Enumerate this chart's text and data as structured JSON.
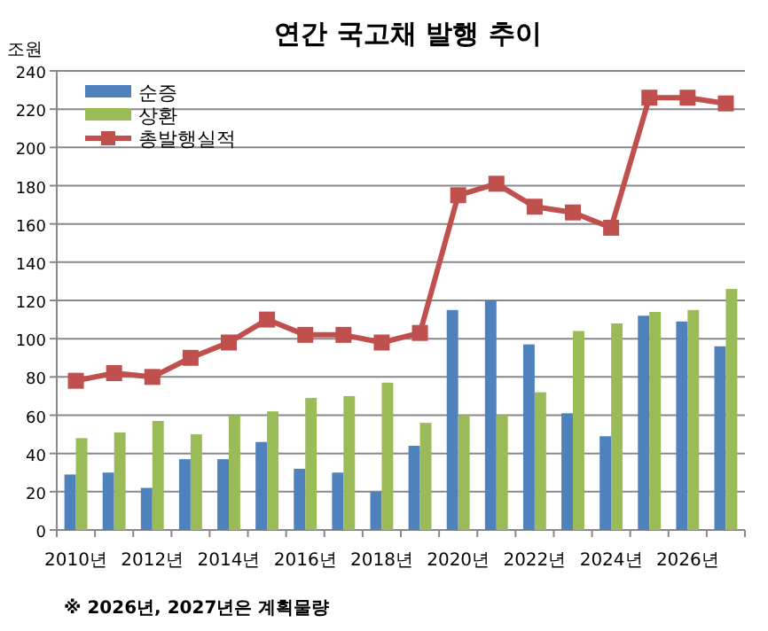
{
  "chart_data": {
    "type": "bar",
    "title": "연간 국고채 발행 추이",
    "ylabel": "조원",
    "categories": [
      "2010년",
      null,
      "2012년",
      null,
      "2014년",
      null,
      "2016년",
      null,
      "2018년",
      null,
      "2020년",
      null,
      "2022년",
      null,
      "2024년",
      null,
      "2026년",
      null
    ],
    "series": [
      {
        "name": "순증",
        "color": "#4f81bd",
        "values": [
          29,
          30,
          22,
          37,
          37,
          46,
          32,
          30,
          20,
          44,
          115,
          120,
          97,
          61,
          49,
          112,
          109,
          96
        ]
      },
      {
        "name": "상환",
        "color": "#9bbb59",
        "values": [
          48,
          51,
          57,
          50,
          60,
          62,
          69,
          70,
          77,
          56,
          60,
          60,
          72,
          104,
          108,
          114,
          115,
          126
        ]
      },
      {
        "name": "총발행실적",
        "type": "line",
        "color": "#c0504d",
        "values": [
          78,
          82,
          80,
          90,
          98,
          110,
          102,
          102,
          98,
          103,
          175,
          181,
          169,
          166,
          158,
          226,
          226,
          223
        ]
      }
    ],
    "ylim": [
      0,
      240
    ],
    "yticks": [
      0,
      20,
      40,
      60,
      80,
      100,
      120,
      140,
      160,
      180,
      200,
      220,
      240
    ],
    "grid": "y",
    "legend": "top left",
    "marker": "square",
    "annotations": [
      "※ 2026년, 2027년은 계획물량"
    ]
  }
}
